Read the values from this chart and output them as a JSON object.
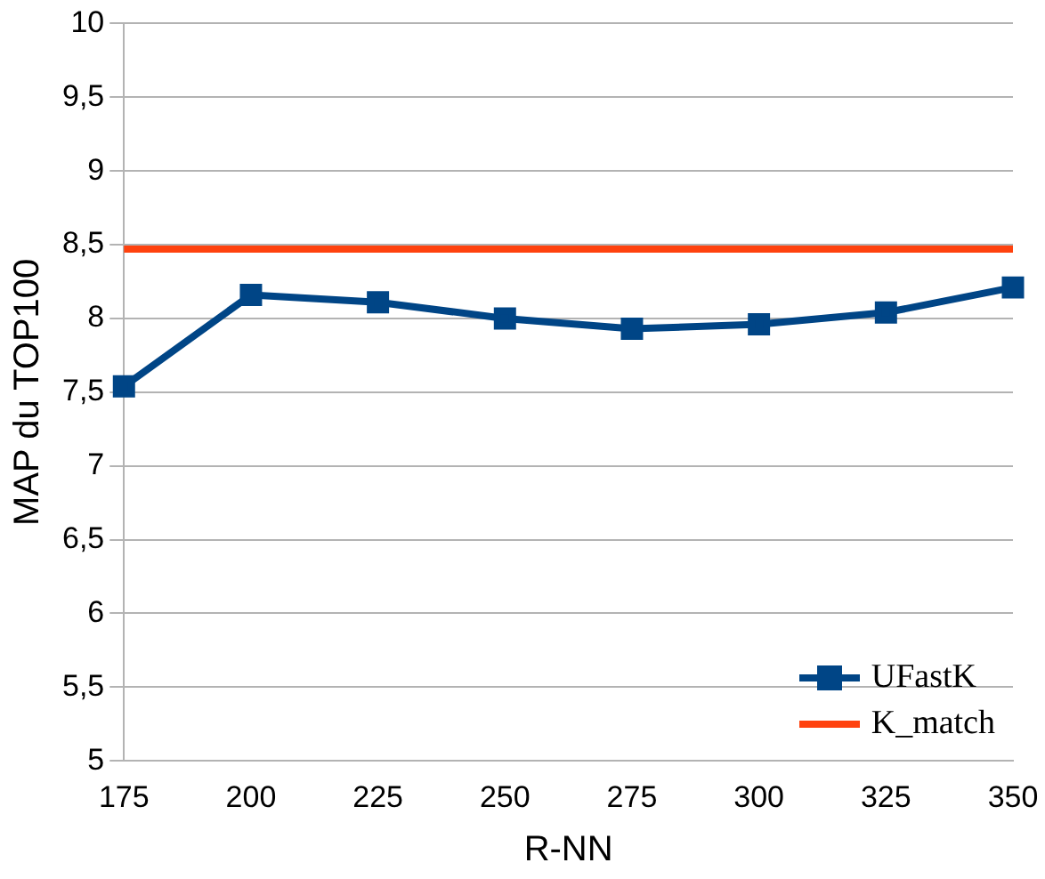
{
  "chart_data": {
    "type": "line",
    "xlabel": "R-NN",
    "ylabel": "MAP du TOP100",
    "x": [
      175,
      200,
      225,
      250,
      275,
      300,
      325,
      350
    ],
    "series": [
      {
        "name": "UFastK",
        "color": "#004586",
        "values": [
          7.54,
          8.16,
          8.11,
          8.0,
          7.93,
          7.96,
          8.04,
          8.21
        ],
        "marker": "square"
      },
      {
        "name": "K_match",
        "color": "#ff420e",
        "values": [
          8.47,
          8.47,
          8.47,
          8.47,
          8.47,
          8.47,
          8.47,
          8.47
        ],
        "marker": "none"
      }
    ],
    "xlim": [
      175,
      350
    ],
    "xticks": [
      175,
      200,
      225,
      250,
      275,
      300,
      325,
      350
    ],
    "ylim": [
      5,
      10
    ],
    "yticks": [
      5,
      {
        "value": 5.5,
        "label": "5,5"
      },
      6,
      {
        "value": 6.5,
        "label": "6,5"
      },
      7,
      {
        "value": 7.5,
        "label": "7,5"
      },
      8,
      {
        "value": 8.5,
        "label": "8,5"
      },
      9,
      {
        "value": 9.5,
        "label": "9,5"
      },
      10
    ],
    "grid": "y",
    "legend": "bottom right",
    "line_style": "solid"
  }
}
